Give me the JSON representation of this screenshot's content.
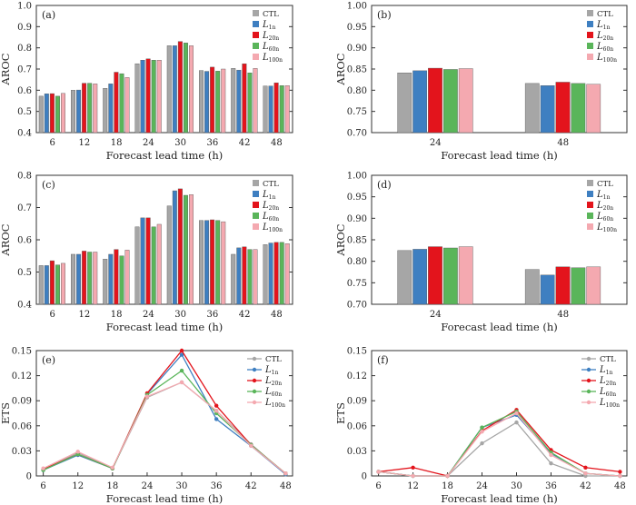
{
  "chart_data": [
    {
      "panel": "(a)",
      "type": "bar",
      "xlabel": "Forecast lead time (h)",
      "ylabel": "AROC",
      "ylim": [
        0.4,
        1.0
      ],
      "yticks": [
        "0.4",
        "0.5",
        "0.6",
        "0.7",
        "0.8",
        "0.9",
        "1.0"
      ],
      "categories": [
        "6",
        "12",
        "18",
        "24",
        "30",
        "36",
        "42",
        "48"
      ],
      "legend_position": "top-right",
      "series": [
        {
          "name": "CTL",
          "color": "#a6a6a6",
          "values": [
            0.572,
            0.6,
            0.609,
            0.725,
            0.81,
            0.693,
            0.703,
            0.62
          ]
        },
        {
          "name": "L1n",
          "color": "#3e7fc1",
          "values": [
            0.583,
            0.601,
            0.63,
            0.742,
            0.81,
            0.689,
            0.695,
            0.62
          ]
        },
        {
          "name": "L20n",
          "color": "#e3141c",
          "values": [
            0.584,
            0.633,
            0.685,
            0.748,
            0.83,
            0.709,
            0.725,
            0.635
          ]
        },
        {
          "name": "L60n",
          "color": "#5ab55a",
          "values": [
            0.572,
            0.633,
            0.678,
            0.742,
            0.823,
            0.69,
            0.682,
            0.622
          ]
        },
        {
          "name": "L100n",
          "color": "#f4a9b0",
          "values": [
            0.585,
            0.63,
            0.66,
            0.742,
            0.81,
            0.7,
            0.703,
            0.622
          ]
        }
      ]
    },
    {
      "panel": "(b)",
      "type": "bar",
      "xlabel": "Forecast lead time (h)",
      "ylabel": "AROC",
      "ylim": [
        0.7,
        1.0
      ],
      "yticks": [
        "0.70",
        "0.75",
        "0.80",
        "0.85",
        "0.90",
        "0.95",
        "1.00"
      ],
      "categories": [
        "24",
        "48"
      ],
      "legend_position": "top-right",
      "series": [
        {
          "name": "CTL",
          "color": "#a6a6a6",
          "values": [
            0.841,
            0.816
          ]
        },
        {
          "name": "L1n",
          "color": "#3e7fc1",
          "values": [
            0.846,
            0.811
          ]
        },
        {
          "name": "L20n",
          "color": "#e3141c",
          "values": [
            0.852,
            0.819
          ]
        },
        {
          "name": "L60n",
          "color": "#5ab55a",
          "values": [
            0.849,
            0.816
          ]
        },
        {
          "name": "L100n",
          "color": "#f4a9b0",
          "values": [
            0.851,
            0.814
          ]
        }
      ]
    },
    {
      "panel": "(c)",
      "type": "bar",
      "xlabel": "Forecast lead time (h)",
      "ylabel": "AROC",
      "ylim": [
        0.4,
        0.8
      ],
      "yticks": [
        "0.4",
        "0.5",
        "0.6",
        "0.7",
        "0.8"
      ],
      "categories": [
        "6",
        "12",
        "18",
        "24",
        "30",
        "36",
        "42",
        "48"
      ],
      "legend_position": "top-right",
      "series": [
        {
          "name": "CTL",
          "color": "#a6a6a6",
          "values": [
            0.52,
            0.555,
            0.54,
            0.64,
            0.705,
            0.66,
            0.555,
            0.585
          ]
        },
        {
          "name": "L1n",
          "color": "#3e7fc1",
          "values": [
            0.52,
            0.555,
            0.555,
            0.668,
            0.752,
            0.66,
            0.575,
            0.59
          ]
        },
        {
          "name": "L20n",
          "color": "#e3141c",
          "values": [
            0.535,
            0.565,
            0.57,
            0.668,
            0.758,
            0.662,
            0.578,
            0.592
          ]
        },
        {
          "name": "L60n",
          "color": "#5ab55a",
          "values": [
            0.522,
            0.562,
            0.55,
            0.64,
            0.738,
            0.66,
            0.57,
            0.592
          ]
        },
        {
          "name": "L100n",
          "color": "#f4a9b0",
          "values": [
            0.527,
            0.562,
            0.568,
            0.648,
            0.74,
            0.656,
            0.57,
            0.588
          ]
        }
      ]
    },
    {
      "panel": "(d)",
      "type": "bar",
      "xlabel": "Forecast lead time (h)",
      "ylabel": "AROC",
      "ylim": [
        0.7,
        1.0
      ],
      "yticks": [
        "0.70",
        "0.75",
        "0.80",
        "0.85",
        "0.90",
        "0.95",
        "1.00"
      ],
      "categories": [
        "24",
        "48"
      ],
      "legend_position": "top-right",
      "series": [
        {
          "name": "CTL",
          "color": "#a6a6a6",
          "values": [
            0.825,
            0.781
          ]
        },
        {
          "name": "L1n",
          "color": "#3e7fc1",
          "values": [
            0.828,
            0.768
          ]
        },
        {
          "name": "L20n",
          "color": "#e3141c",
          "values": [
            0.834,
            0.787
          ]
        },
        {
          "name": "L60n",
          "color": "#5ab55a",
          "values": [
            0.831,
            0.785
          ]
        },
        {
          "name": "L100n",
          "color": "#f4a9b0",
          "values": [
            0.834,
            0.787
          ]
        }
      ]
    },
    {
      "panel": "(e)",
      "type": "line",
      "xlabel": "Forecast lead time (h)",
      "ylabel": "ETS",
      "ylim": [
        0,
        0.15
      ],
      "yticks": [
        "0",
        "0.03",
        "0.06",
        "0.09",
        "0.12",
        "0.15"
      ],
      "categories": [
        "6",
        "12",
        "18",
        "24",
        "30",
        "36",
        "42",
        "48"
      ],
      "legend_position": "top-right",
      "series": [
        {
          "name": "CTL",
          "color": "#a6a6a6",
          "values": [
            0.007,
            0.028,
            0.009,
            0.094,
            0.112,
            0.078,
            0.038,
            0.002
          ]
        },
        {
          "name": "L1n",
          "color": "#3e7fc1",
          "values": [
            0.007,
            0.025,
            0.009,
            0.098,
            0.145,
            0.068,
            0.036,
            0.002
          ]
        },
        {
          "name": "L20n",
          "color": "#e3141c",
          "values": [
            0.008,
            0.026,
            0.009,
            0.099,
            0.15,
            0.084,
            0.037,
            0.003
          ]
        },
        {
          "name": "L60n",
          "color": "#5ab55a",
          "values": [
            0.007,
            0.026,
            0.009,
            0.097,
            0.126,
            0.075,
            0.037,
            0.003
          ]
        },
        {
          "name": "L100n",
          "color": "#f4a9b0",
          "values": [
            0.009,
            0.029,
            0.01,
            0.095,
            0.112,
            0.078,
            0.036,
            0.003
          ]
        }
      ]
    },
    {
      "panel": "(f)",
      "type": "line",
      "xlabel": "Forecast lead time (h)",
      "ylabel": "ETS",
      "ylim": [
        0,
        0.15
      ],
      "yticks": [
        "0",
        "0.03",
        "0.06",
        "0.09",
        "0.12",
        "0.15"
      ],
      "categories": [
        "6",
        "12",
        "18",
        "24",
        "30",
        "36",
        "42",
        "48"
      ],
      "legend_position": "top-right",
      "series": [
        {
          "name": "CTL",
          "color": "#a6a6a6",
          "values": [
            0.005,
            0.0,
            0.0,
            0.039,
            0.064,
            0.015,
            0.0,
            0.0
          ]
        },
        {
          "name": "L1n",
          "color": "#3e7fc1",
          "values": [
            0.005,
            0.0,
            0.0,
            0.058,
            0.073,
            0.027,
            0.003,
            0.0
          ]
        },
        {
          "name": "L20n",
          "color": "#e3141c",
          "values": [
            0.005,
            0.01,
            0.0,
            0.054,
            0.079,
            0.031,
            0.01,
            0.005
          ]
        },
        {
          "name": "L60n",
          "color": "#5ab55a",
          "values": [
            0.005,
            0.0,
            0.0,
            0.058,
            0.077,
            0.028,
            0.003,
            0.0
          ]
        },
        {
          "name": "L100n",
          "color": "#f4a9b0",
          "values": [
            0.005,
            0.0,
            0.0,
            0.053,
            0.075,
            0.025,
            0.003,
            0.0
          ]
        }
      ]
    }
  ],
  "legend_labels": [
    {
      "main": "CTL",
      "sub": ""
    },
    {
      "main": "L",
      "sub": "1n"
    },
    {
      "main": "L",
      "sub": "20n"
    },
    {
      "main": "L",
      "sub": "60n"
    },
    {
      "main": "L",
      "sub": "100n"
    }
  ]
}
